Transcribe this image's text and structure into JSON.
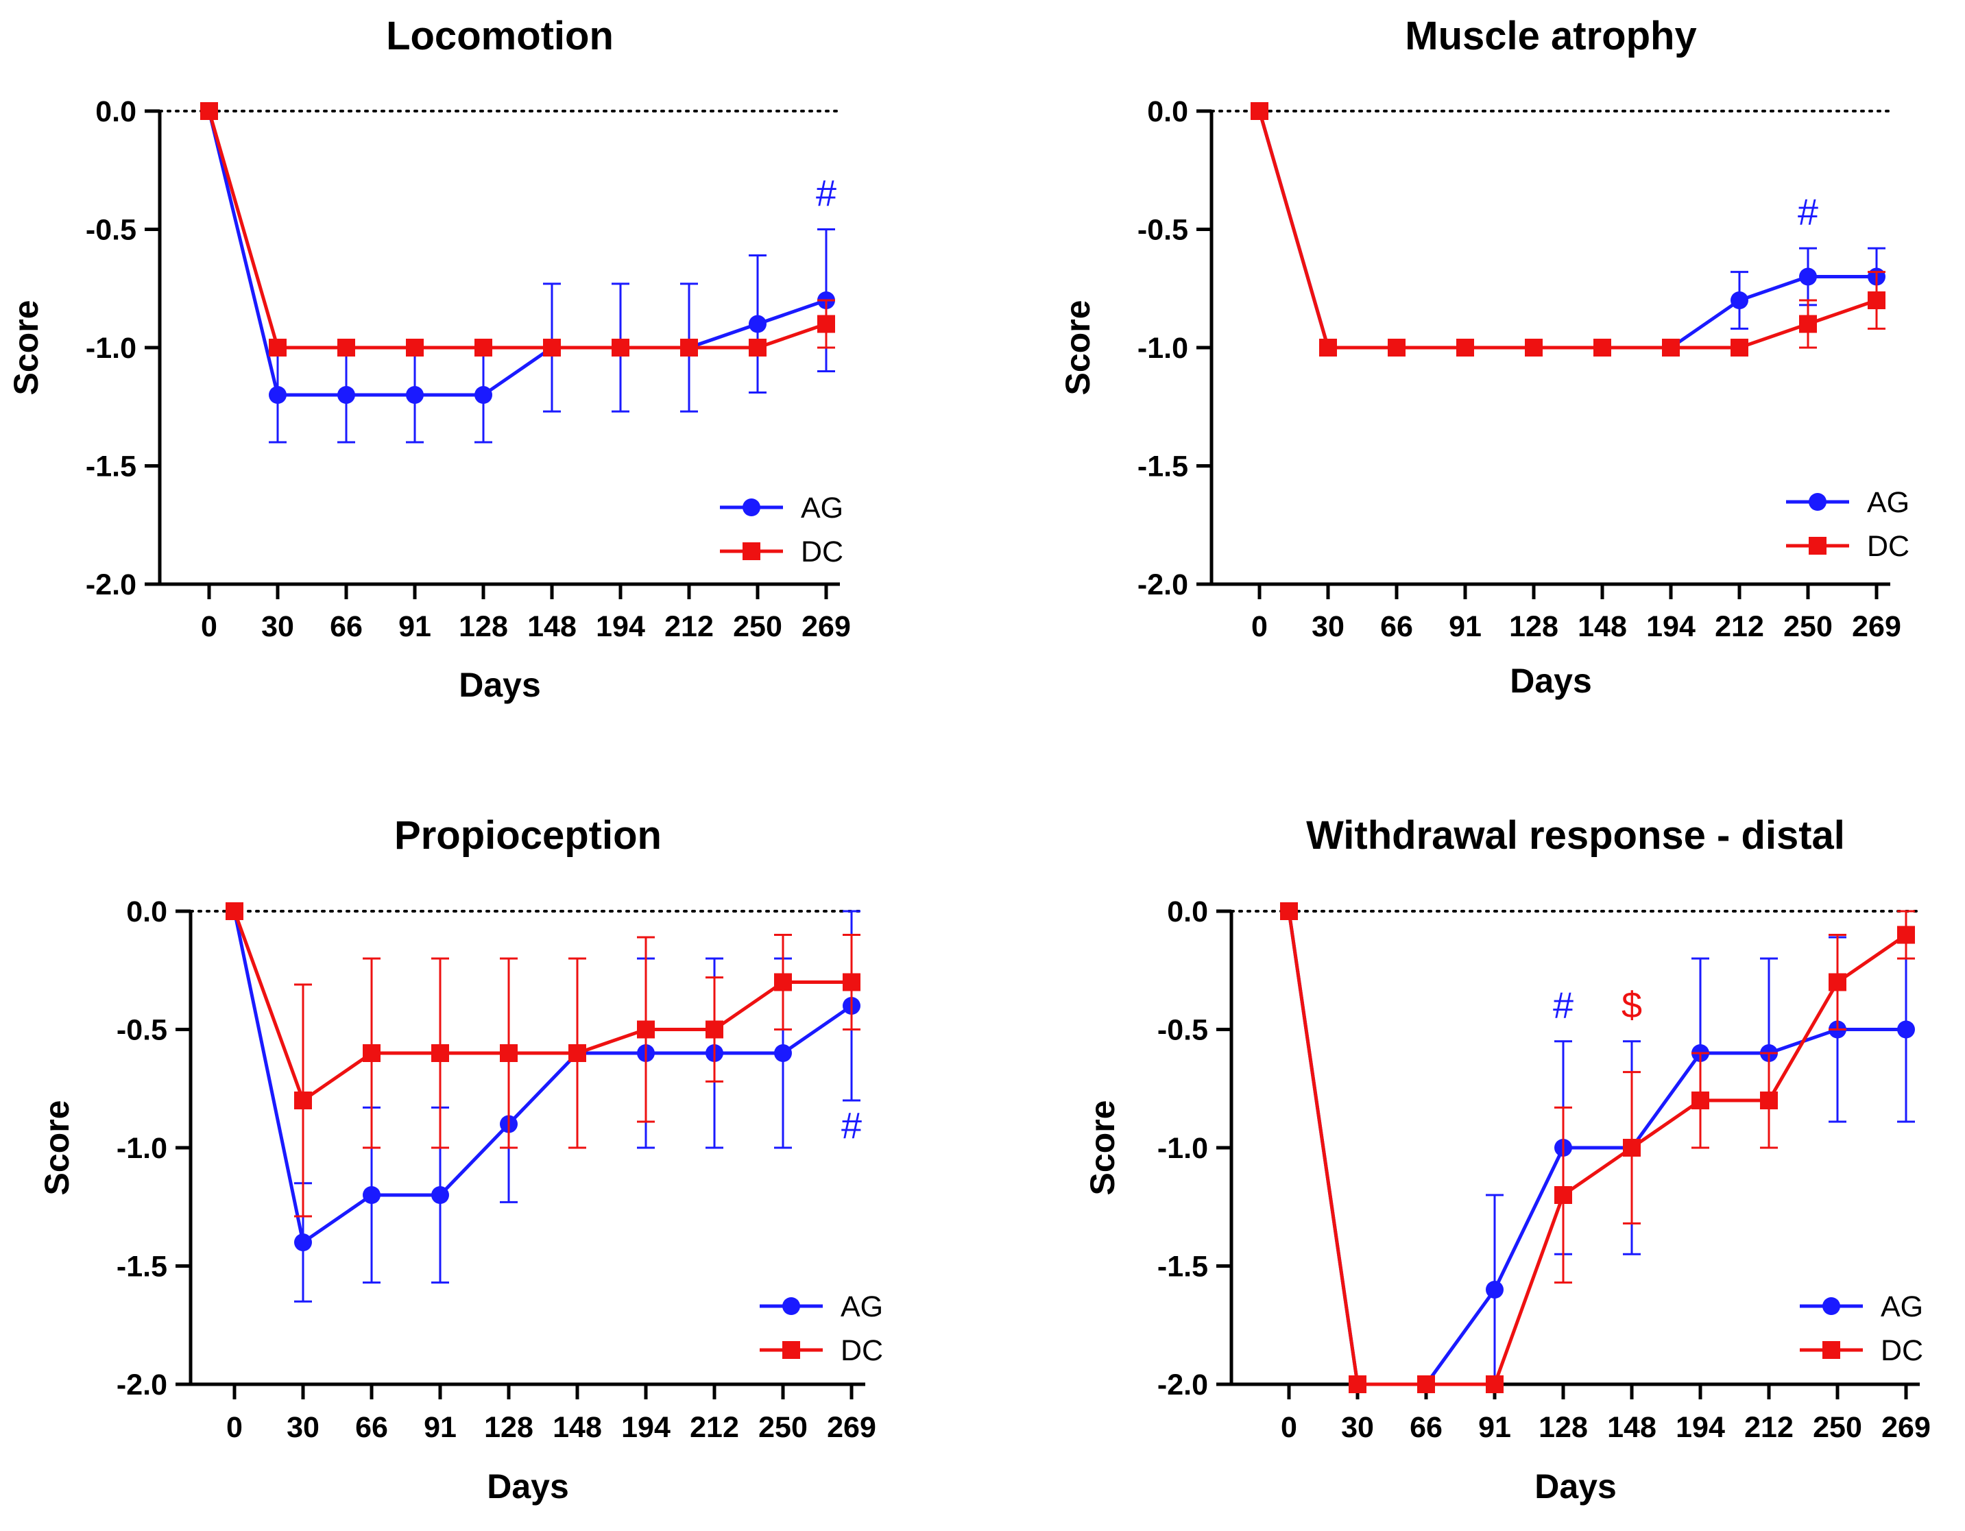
{
  "chart_data": [
    {
      "type": "line",
      "title": "Locomotion",
      "xlabel": "Days",
      "ylabel": "Score",
      "categories": [
        "0",
        "30",
        "66",
        "91",
        "128",
        "148",
        "194",
        "212",
        "250",
        "269"
      ],
      "ylim": [
        -2.0,
        0.0
      ],
      "yticks": [
        0.0,
        -0.5,
        -1.0,
        -1.5,
        -2.0
      ],
      "ytick_labels": [
        "0.0",
        "-0.5",
        "-1.0",
        "-1.5",
        "-2.0"
      ],
      "reference_line": 0.0,
      "legend_position": "bottom-right",
      "series": [
        {
          "name": "AG",
          "color": "#1a1aff",
          "marker": "circle",
          "values": [
            0,
            -1.2,
            -1.2,
            -1.2,
            -1.2,
            -1.0,
            -1.0,
            -1.0,
            -0.9,
            -0.8
          ],
          "errors": [
            0,
            0.2,
            0.2,
            0.2,
            0.2,
            0.27,
            0.27,
            0.27,
            0.29,
            0.3
          ]
        },
        {
          "name": "DC",
          "color": "#ee1111",
          "marker": "square",
          "values": [
            0,
            -1.0,
            -1.0,
            -1.0,
            -1.0,
            -1.0,
            -1.0,
            -1.0,
            -1.0,
            -0.9
          ],
          "errors": [
            0,
            0,
            0,
            0,
            0,
            0,
            0,
            0,
            0,
            0.1
          ]
        }
      ],
      "annotations": [
        {
          "text": "#",
          "category": "269",
          "y": -0.4,
          "color": "#1a1aff"
        }
      ]
    },
    {
      "type": "line",
      "title": "Muscle atrophy",
      "xlabel": "Days",
      "ylabel": "Score",
      "categories": [
        "0",
        "30",
        "66",
        "91",
        "128",
        "148",
        "194",
        "212",
        "250",
        "269"
      ],
      "ylim": [
        -2.0,
        0.0
      ],
      "yticks": [
        0.0,
        -0.5,
        -1.0,
        -1.5,
        -2.0
      ],
      "ytick_labels": [
        "0.0",
        "-0.5",
        "-1.0",
        "-1.5",
        "-2.0"
      ],
      "reference_line": 0.0,
      "legend_position": "bottom-right",
      "series": [
        {
          "name": "AG",
          "color": "#1a1aff",
          "marker": "circle",
          "values": [
            0,
            -1.0,
            -1.0,
            -1.0,
            -1.0,
            -1.0,
            -1.0,
            -0.8,
            -0.7,
            -0.7
          ],
          "errors": [
            0,
            0,
            0,
            0,
            0,
            0,
            0,
            0.12,
            0.12,
            0.12
          ]
        },
        {
          "name": "DC",
          "color": "#ee1111",
          "marker": "square",
          "values": [
            0,
            -1.0,
            -1.0,
            -1.0,
            -1.0,
            -1.0,
            -1.0,
            -1.0,
            -0.9,
            -0.8
          ],
          "errors": [
            0,
            0,
            0,
            0,
            0,
            0,
            0,
            0,
            0.1,
            0.12
          ]
        }
      ],
      "annotations": [
        {
          "text": "#",
          "category": "250",
          "y": -0.48,
          "color": "#1a1aff"
        }
      ]
    },
    {
      "type": "line",
      "title": "Propioception",
      "xlabel": "Days",
      "ylabel": "Score",
      "categories": [
        "0",
        "30",
        "66",
        "91",
        "128",
        "148",
        "194",
        "212",
        "250",
        "269"
      ],
      "ylim": [
        -2.0,
        0.0
      ],
      "yticks": [
        0.0,
        -0.5,
        -1.0,
        -1.5,
        -2.0
      ],
      "ytick_labels": [
        "0.0",
        "-0.5",
        "-1.0",
        "-1.5",
        "-2.0"
      ],
      "reference_line": 0.0,
      "legend_position": "bottom-right",
      "series": [
        {
          "name": "AG",
          "color": "#1a1aff",
          "marker": "circle",
          "values": [
            0,
            -1.4,
            -1.2,
            -1.2,
            -0.9,
            -0.6,
            -0.6,
            -0.6,
            -0.6,
            -0.4
          ],
          "errors": [
            0,
            0.25,
            0.37,
            0.37,
            0.33,
            0.4,
            0.4,
            0.4,
            0.4,
            0.4
          ]
        },
        {
          "name": "DC",
          "color": "#ee1111",
          "marker": "square",
          "values": [
            0,
            -0.8,
            -0.6,
            -0.6,
            -0.6,
            -0.6,
            -0.5,
            -0.5,
            -0.3,
            -0.3
          ],
          "errors": [
            0,
            0.49,
            0.4,
            0.4,
            0.4,
            0.4,
            0.39,
            0.22,
            0.2,
            0.2
          ]
        }
      ],
      "annotations": [
        {
          "text": "#",
          "category": "269",
          "y": -0.96,
          "color": "#1a1aff"
        }
      ]
    },
    {
      "type": "line",
      "title": "Withdrawal response - distal",
      "xlabel": "Days",
      "ylabel": "Score",
      "categories": [
        "0",
        "30",
        "66",
        "91",
        "128",
        "148",
        "194",
        "212",
        "250",
        "269"
      ],
      "ylim": [
        -2.0,
        0.0
      ],
      "yticks": [
        0.0,
        -0.5,
        -1.0,
        -1.5,
        -2.0
      ],
      "ytick_labels": [
        "0.0",
        "-0.5",
        "-1.0",
        "-1.5",
        "-2.0"
      ],
      "reference_line": 0.0,
      "legend_position": "bottom-right",
      "series": [
        {
          "name": "AG",
          "color": "#1a1aff",
          "marker": "circle",
          "values": [
            0,
            -2.0,
            -2.0,
            -1.6,
            -1.0,
            -1.0,
            -0.6,
            -0.6,
            -0.5,
            -0.5
          ],
          "errors": [
            0,
            0,
            0,
            0.4,
            0.45,
            0.45,
            0.4,
            0.4,
            0.39,
            0.39
          ]
        },
        {
          "name": "DC",
          "color": "#ee1111",
          "marker": "square",
          "values": [
            0,
            -2.0,
            -2.0,
            -2.0,
            -1.2,
            -1.0,
            -0.8,
            -0.8,
            -0.3,
            -0.1
          ],
          "errors": [
            0,
            0,
            0,
            0,
            0.37,
            0.32,
            0.2,
            0.2,
            0.2,
            0.1
          ]
        }
      ],
      "annotations": [
        {
          "text": "#",
          "category": "128",
          "y": -0.45,
          "color": "#1a1aff"
        },
        {
          "text": "$",
          "category": "148",
          "y": -0.45,
          "color": "#ee1111"
        }
      ]
    }
  ]
}
